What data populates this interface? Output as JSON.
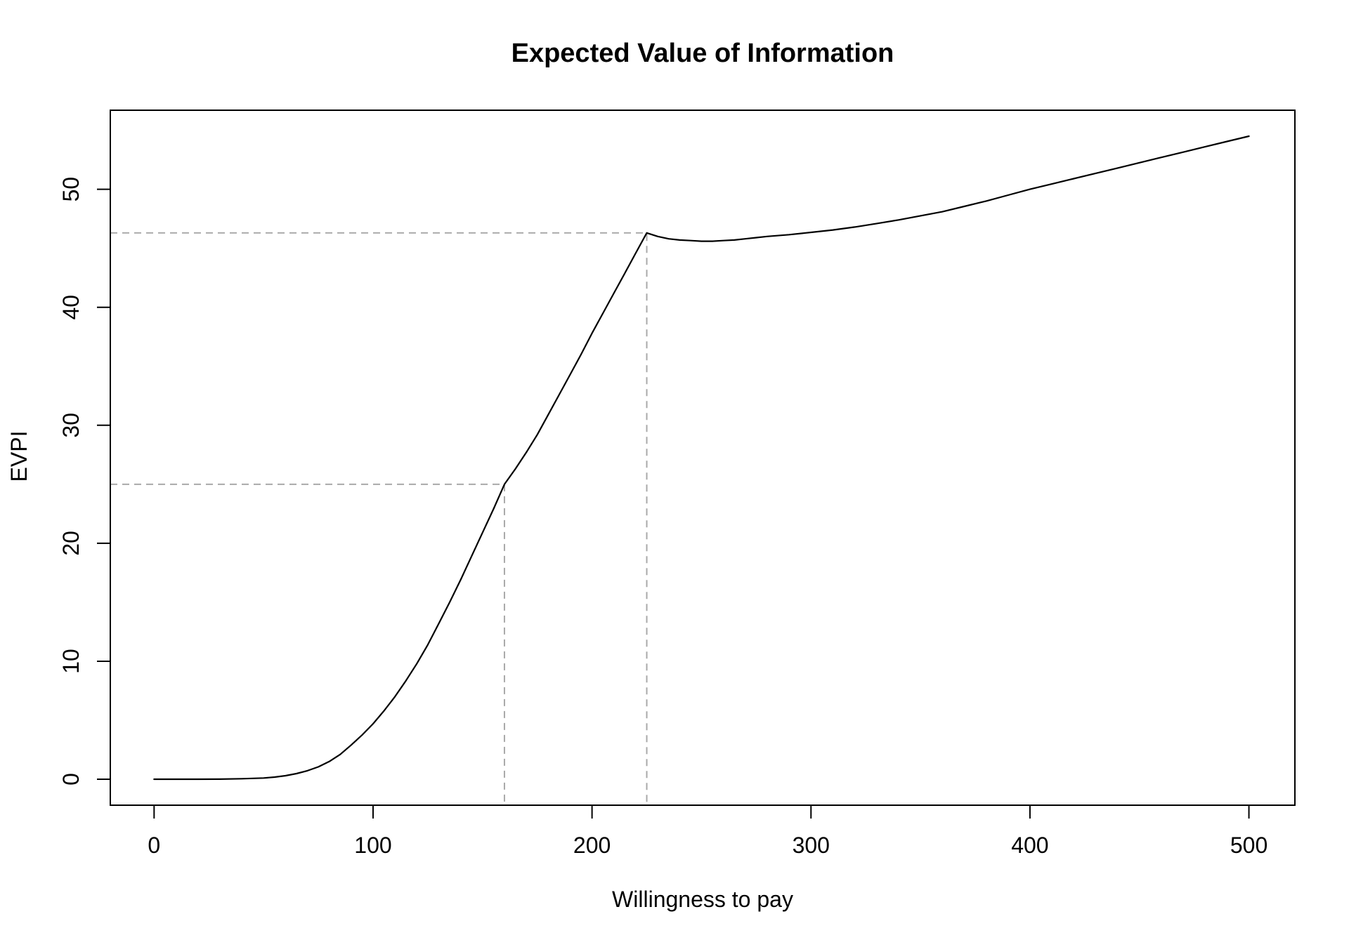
{
  "chart": {
    "title": "Expected Value of Information",
    "xlabel": "Willingness to pay",
    "ylabel": "EVPI"
  },
  "chart_data": {
    "type": "line",
    "title": "Expected Value of Information",
    "xlabel": "Willingness to pay",
    "ylabel": "EVPI",
    "xlim": [
      -20,
      521
    ],
    "ylim": [
      -2.2,
      56.7
    ],
    "x_ticks": [
      0,
      100,
      200,
      300,
      400,
      500
    ],
    "y_ticks": [
      0,
      10,
      20,
      30,
      40,
      50
    ],
    "grid": false,
    "legend": false,
    "background_color": "#ffffff",
    "line_color": "#000000",
    "box_color": "#000000",
    "reference_line_color": "#a9a9a9",
    "reference_line_style": "dashed",
    "reference_points": [
      {
        "x": 160,
        "y": 25
      },
      {
        "x": 225,
        "y": 46.3
      }
    ],
    "series": [
      {
        "name": "EVPI",
        "points": [
          [
            0,
            0
          ],
          [
            10,
            0
          ],
          [
            20,
            0
          ],
          [
            30,
            0.01
          ],
          [
            40,
            0.04
          ],
          [
            50,
            0.1
          ],
          [
            55,
            0.18
          ],
          [
            60,
            0.3
          ],
          [
            65,
            0.48
          ],
          [
            70,
            0.72
          ],
          [
            75,
            1.05
          ],
          [
            80,
            1.5
          ],
          [
            85,
            2.1
          ],
          [
            90,
            2.9
          ],
          [
            95,
            3.75
          ],
          [
            100,
            4.7
          ],
          [
            105,
            5.8
          ],
          [
            110,
            7.0
          ],
          [
            115,
            8.35
          ],
          [
            120,
            9.8
          ],
          [
            125,
            11.4
          ],
          [
            130,
            13.2
          ],
          [
            135,
            15.0
          ],
          [
            140,
            16.9
          ],
          [
            145,
            18.9
          ],
          [
            150,
            20.9
          ],
          [
            155,
            22.9
          ],
          [
            160,
            25.0
          ],
          [
            165,
            26.3
          ],
          [
            170,
            27.7
          ],
          [
            175,
            29.2
          ],
          [
            180,
            30.9
          ],
          [
            185,
            32.6
          ],
          [
            190,
            34.3
          ],
          [
            195,
            36.0
          ],
          [
            200,
            37.8
          ],
          [
            205,
            39.5
          ],
          [
            210,
            41.2
          ],
          [
            215,
            42.9
          ],
          [
            220,
            44.6
          ],
          [
            225,
            46.3
          ],
          [
            230,
            46.0
          ],
          [
            235,
            45.8
          ],
          [
            240,
            45.7
          ],
          [
            245,
            45.65
          ],
          [
            250,
            45.6
          ],
          [
            255,
            45.6
          ],
          [
            260,
            45.65
          ],
          [
            265,
            45.7
          ],
          [
            270,
            45.8
          ],
          [
            275,
            45.9
          ],
          [
            280,
            46.0
          ],
          [
            290,
            46.15
          ],
          [
            300,
            46.35
          ],
          [
            310,
            46.55
          ],
          [
            320,
            46.8
          ],
          [
            330,
            47.1
          ],
          [
            340,
            47.4
          ],
          [
            350,
            47.75
          ],
          [
            360,
            48.1
          ],
          [
            370,
            48.55
          ],
          [
            380,
            49.0
          ],
          [
            390,
            49.5
          ],
          [
            400,
            50.0
          ],
          [
            410,
            50.45
          ],
          [
            420,
            50.9
          ],
          [
            430,
            51.35
          ],
          [
            440,
            51.8
          ],
          [
            450,
            52.25
          ],
          [
            460,
            52.7
          ],
          [
            470,
            53.15
          ],
          [
            480,
            53.6
          ],
          [
            490,
            54.05
          ],
          [
            500,
            54.5
          ]
        ]
      }
    ]
  }
}
